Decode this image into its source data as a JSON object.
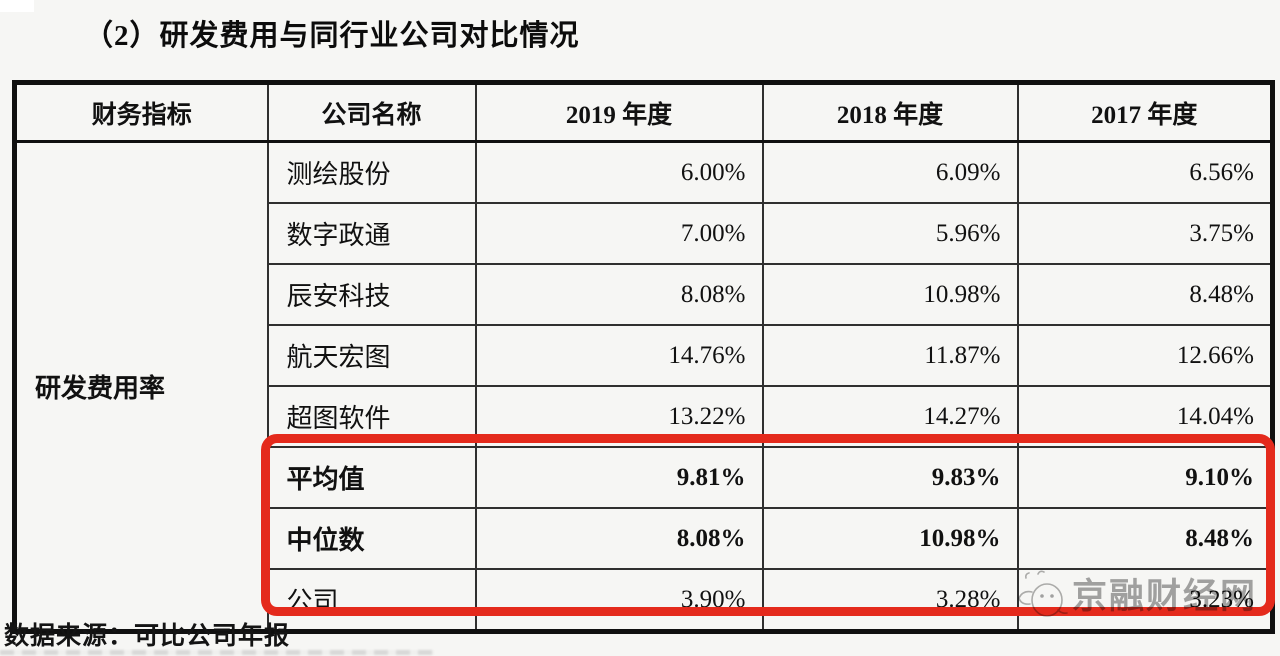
{
  "page": {
    "title": "（2）研发费用与同行业公司对比情况",
    "source_note": "数据来源：可比公司年报",
    "watermark_text": "京融财经网",
    "highlight_color": "#e42a1c"
  },
  "table": {
    "headers": [
      "财务指标",
      "公司名称",
      "2019 年度",
      "2018 年度",
      "2017 年度"
    ],
    "indicator_label": "研发费用率",
    "rows": [
      {
        "name": "测绘股份",
        "y2019": "6.00%",
        "y2018": "6.09%",
        "y2017": "6.56%",
        "bold": false
      },
      {
        "name": "数字政通",
        "y2019": "7.00%",
        "y2018": "5.96%",
        "y2017": "3.75%",
        "bold": false
      },
      {
        "name": "辰安科技",
        "y2019": "8.08%",
        "y2018": "10.98%",
        "y2017": "8.48%",
        "bold": false
      },
      {
        "name": "航天宏图",
        "y2019": "14.76%",
        "y2018": "11.87%",
        "y2017": "12.66%",
        "bold": false
      },
      {
        "name": "超图软件",
        "y2019": "13.22%",
        "y2018": "14.27%",
        "y2017": "14.04%",
        "bold": false
      },
      {
        "name": "平均值",
        "y2019": "9.81%",
        "y2018": "9.83%",
        "y2017": "9.10%",
        "bold": true
      },
      {
        "name": "中位数",
        "y2019": "8.08%",
        "y2018": "10.98%",
        "y2017": "8.48%",
        "bold": true
      },
      {
        "name": "公司",
        "y2019": "3.90%",
        "y2018": "3.28%",
        "y2017": "3.23%",
        "bold": false
      }
    ]
  }
}
